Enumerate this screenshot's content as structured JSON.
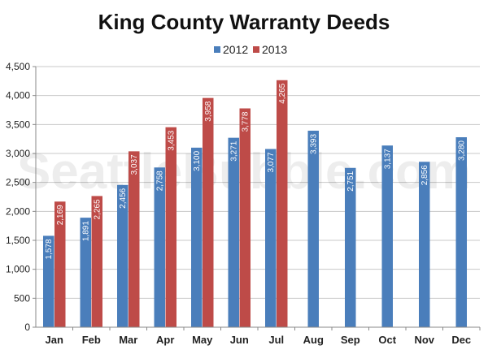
{
  "chart_data": {
    "type": "bar",
    "title": "King County Warranty Deeds",
    "watermark": "SeattleBubble.com",
    "categories": [
      "Jan",
      "Feb",
      "Mar",
      "Apr",
      "May",
      "Jun",
      "Jul",
      "Aug",
      "Sep",
      "Oct",
      "Nov",
      "Dec"
    ],
    "series": [
      {
        "name": "2012",
        "color": "#4a7ebb",
        "values": [
          1578,
          1891,
          2456,
          2758,
          3100,
          3271,
          3077,
          3393,
          2751,
          3137,
          2856,
          3280
        ]
      },
      {
        "name": "2013",
        "color": "#be4b48",
        "values": [
          2169,
          2265,
          3037,
          3453,
          3958,
          3778,
          4265,
          null,
          null,
          null,
          null,
          null
        ]
      }
    ],
    "ylim": [
      0,
      4500
    ],
    "ytick_step": 500,
    "xlabel": "",
    "ylabel": "",
    "grid": true,
    "legend": "top-center",
    "data_labels": true
  }
}
